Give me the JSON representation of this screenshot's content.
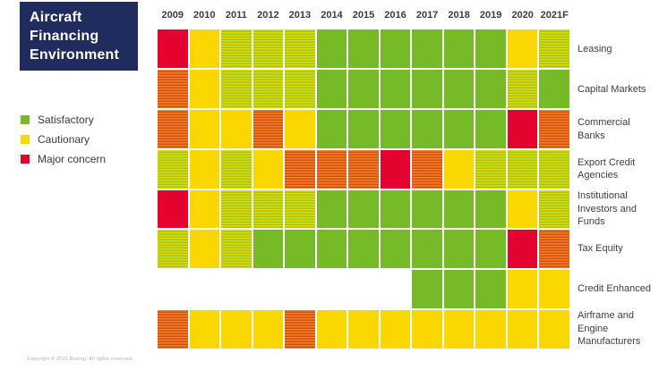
{
  "page": {
    "copyright": "Copyright © 2021 Boeing. All rights reserved."
  },
  "title": {
    "lines": [
      "Aircraft",
      "Financing",
      "Environment"
    ],
    "box_color": "#202C5E",
    "text_color": "#FFFFFF"
  },
  "legend": {
    "position": "left",
    "items": [
      {
        "key": "satisfactory",
        "label": "Satisfactory",
        "color": "#76BA27"
      },
      {
        "key": "cautionary",
        "label": "Cautionary",
        "color": "#FBD702"
      },
      {
        "key": "major-concern",
        "label": "Major concern",
        "color": "#E4032E"
      }
    ]
  },
  "chart_data": {
    "type": "heatmap",
    "title": "Aircraft Financing Environment",
    "columns": [
      "2009",
      "2010",
      "2011",
      "2012",
      "2013",
      "2014",
      "2015",
      "2016",
      "2017",
      "2018",
      "2019",
      "2020",
      "2021F"
    ],
    "rows": [
      {
        "label": "Leasing",
        "values": [
          "R",
          "Y",
          "YG",
          "YG",
          "YG",
          "G",
          "G",
          "G",
          "G",
          "G",
          "G",
          "Y",
          "YG"
        ]
      },
      {
        "label": "Capital Markets",
        "values": [
          "OR",
          "Y",
          "YG",
          "YG",
          "YG",
          "G",
          "G",
          "G",
          "G",
          "G",
          "G",
          "YG",
          "G"
        ]
      },
      {
        "label": "Commercial Banks",
        "values": [
          "OR",
          "Y",
          "Y",
          "OR",
          "Y",
          "G",
          "G",
          "G",
          "G",
          "G",
          "G",
          "R",
          "OR"
        ]
      },
      {
        "label": "Export Credit Agencies",
        "values": [
          "YG",
          "Y",
          "YG",
          "Y",
          "OR",
          "OR",
          "OR",
          "R",
          "OR",
          "Y",
          "YG",
          "YG",
          "YG"
        ]
      },
      {
        "label": "Institutional Investors and Funds",
        "values": [
          "R",
          "Y",
          "YG",
          "YG",
          "YG",
          "G",
          "G",
          "G",
          "G",
          "G",
          "G",
          "Y",
          "YG"
        ]
      },
      {
        "label": "Tax Equity",
        "values": [
          "YG",
          "Y",
          "YG",
          "G",
          "G",
          "G",
          "G",
          "G",
          "G",
          "G",
          "G",
          "R",
          "OR"
        ]
      },
      {
        "label": "Credit Enhanced",
        "values": [
          "",
          "",
          "",
          "",
          "",
          "",
          "",
          "",
          "G",
          "G",
          "G",
          "Y",
          "Y"
        ]
      },
      {
        "label": "Airframe and Engine Manufacturers",
        "values": [
          "OR",
          "Y",
          "Y",
          "Y",
          "OR",
          "Y",
          "Y",
          "Y",
          "Y",
          "Y",
          "Y",
          "Y",
          "Y"
        ]
      }
    ],
    "value_key": {
      "G": "Satisfactory",
      "Y": "Cautionary",
      "R": "Major concern",
      "YG": "Between satisfactory and cautionary (yellow-green striped)",
      "OR": "Between cautionary and major concern (orange-red striped)",
      "": "No data / not applicable"
    },
    "colors": {
      "G": "#76BA27",
      "Y": "#FBD702",
      "R": "#E4032E",
      "YG_stripe": [
        "#E4DC00",
        "#9FC41D"
      ],
      "OR_stripe": [
        "#F08222",
        "#D34D16"
      ]
    },
    "layout": {
      "grid_gaps": "white 2px",
      "row_labels": "right side",
      "year_labels": "top"
    }
  }
}
